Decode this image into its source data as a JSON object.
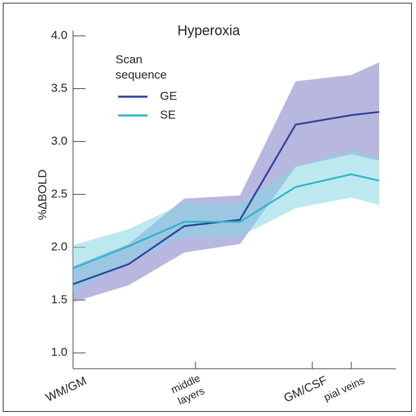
{
  "chart_data": {
    "type": "line",
    "title": "Hyperoxia",
    "y_label": "%ΔBOLD",
    "legend_title": "Scan sequence",
    "x": [
      0,
      1,
      2,
      3,
      4,
      5,
      5.5
    ],
    "xlim": [
      0,
      5.8
    ],
    "xticks": [
      {
        "value": 0,
        "label": "WM/GM"
      },
      {
        "value": 2.2,
        "label": "middle layers"
      },
      {
        "value": 4.3,
        "label": "GM/CSF"
      },
      {
        "value": 5.0,
        "label": "pial veins"
      }
    ],
    "ylim": [
      0.85,
      4.05
    ],
    "yticks": [
      {
        "value": 1.0,
        "label": "1.0"
      },
      {
        "value": 1.5,
        "label": "1.5"
      },
      {
        "value": 2.0,
        "label": "2.0"
      },
      {
        "value": 2.5,
        "label": "2.5"
      },
      {
        "value": 3.0,
        "label": "3.0"
      },
      {
        "value": 3.5,
        "label": "3.5"
      },
      {
        "value": 4.0,
        "label": "4.0"
      }
    ],
    "series": [
      {
        "name": "GE",
        "color": "#2e3f9a",
        "band_color": "#7b7cc4",
        "values": [
          1.65,
          1.84,
          2.2,
          2.26,
          3.16,
          3.25,
          3.28
        ],
        "lower": [
          1.48,
          1.64,
          1.95,
          2.03,
          2.76,
          2.88,
          2.82
        ],
        "upper": [
          1.82,
          2.03,
          2.46,
          2.49,
          3.57,
          3.63,
          3.75
        ]
      },
      {
        "name": "SE",
        "color": "#2bb5c9",
        "band_color": "#86d6e3",
        "values": [
          1.8,
          2.01,
          2.24,
          2.24,
          2.57,
          2.69,
          2.63
        ],
        "lower": [
          1.58,
          1.85,
          2.1,
          2.1,
          2.37,
          2.47,
          2.4
        ],
        "upper": [
          2.02,
          2.17,
          2.42,
          2.41,
          2.77,
          2.91,
          2.85
        ]
      }
    ]
  }
}
